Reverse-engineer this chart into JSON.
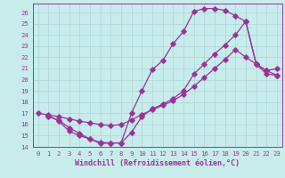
{
  "xlabel": "Windchill (Refroidissement éolien,°C)",
  "bg_color": "#c8ecec",
  "line_color": "#993399",
  "grid_color": "#b0d8d8",
  "xlim": [
    -0.5,
    23.5
  ],
  "ylim": [
    14,
    26.8
  ],
  "yticks": [
    14,
    15,
    16,
    17,
    18,
    19,
    20,
    21,
    22,
    23,
    24,
    25,
    26
  ],
  "xticks": [
    0,
    1,
    2,
    3,
    4,
    5,
    6,
    7,
    8,
    9,
    10,
    11,
    12,
    13,
    14,
    15,
    16,
    17,
    18,
    19,
    20,
    21,
    22,
    23
  ],
  "curve1_x": [
    1,
    2,
    3,
    4,
    5,
    6,
    7,
    8,
    9,
    10,
    11,
    12,
    13,
    14,
    15,
    16,
    17,
    18,
    19,
    20,
    21,
    22,
    23
  ],
  "curve1_y": [
    16.7,
    16.4,
    15.7,
    15.2,
    14.7,
    14.3,
    14.35,
    14.35,
    17.0,
    19.0,
    20.9,
    21.7,
    23.2,
    24.3,
    26.1,
    26.35,
    26.35,
    26.2,
    25.7,
    25.2,
    21.4,
    20.5,
    20.4
  ],
  "curve2_x": [
    1,
    2,
    3,
    4,
    5,
    6,
    7,
    8,
    9,
    10,
    11,
    12,
    13,
    14,
    15,
    16,
    17,
    18,
    19,
    20,
    21,
    22,
    23
  ],
  "curve2_y": [
    16.8,
    16.3,
    15.4,
    15.0,
    14.7,
    14.4,
    14.35,
    14.35,
    15.3,
    16.7,
    17.4,
    17.8,
    18.3,
    19.0,
    20.5,
    21.4,
    22.3,
    23.1,
    24.0,
    25.2,
    21.4,
    20.8,
    21.0
  ],
  "curve3_x": [
    0,
    1,
    2,
    3,
    4,
    5,
    6,
    7,
    8,
    9,
    10,
    11,
    12,
    13,
    14,
    15,
    16,
    17,
    18,
    19,
    20,
    21,
    22,
    23
  ],
  "curve3_y": [
    17.0,
    16.85,
    16.7,
    16.5,
    16.3,
    16.15,
    16.0,
    15.9,
    16.0,
    16.4,
    16.9,
    17.3,
    17.7,
    18.1,
    18.7,
    19.4,
    20.2,
    21.0,
    21.8,
    22.7,
    22.0,
    21.4,
    20.8,
    20.4
  ],
  "markersize": 2.8,
  "linewidth": 0.9,
  "label_fontsize": 6.0,
  "tick_fontsize": 5.2
}
